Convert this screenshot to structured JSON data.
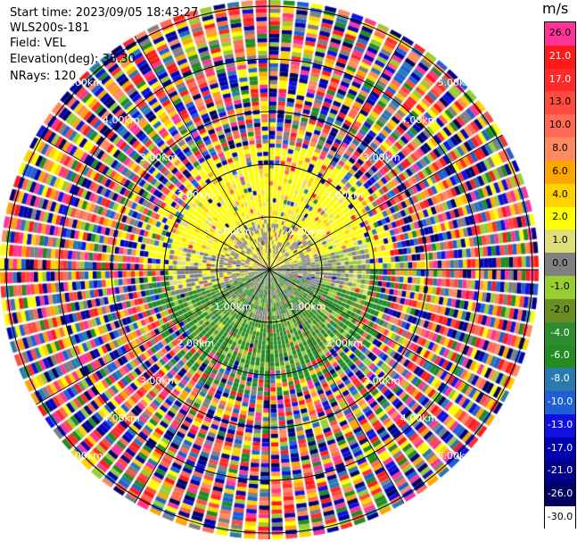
{
  "header": {
    "start_time": "Start time: 2023/09/05 18:43:27",
    "instrument": "WLS200s-181",
    "field": "Field: VEL",
    "elevation": "Elevation(deg): 35.30",
    "nrays": "NRays: 120"
  },
  "colorbar": {
    "unit": "m/s",
    "bands": [
      {
        "label": "26.0",
        "color": "#ff3399"
      },
      {
        "label": "21.0",
        "color": "#ff1a1a"
      },
      {
        "label": "17.0",
        "color": "#ff2a2a"
      },
      {
        "label": "13.0",
        "color": "#ff4a40"
      },
      {
        "label": "10.0",
        "color": "#ff6a55"
      },
      {
        "label": "8.0",
        "color": "#ff8a60"
      },
      {
        "label": "6.0",
        "color": "#ffa500"
      },
      {
        "label": "4.0",
        "color": "#ffd200"
      },
      {
        "label": "2.0",
        "color": "#ffff00"
      },
      {
        "label": "1.0",
        "color": "#dede78"
      },
      {
        "label": "0.0",
        "color": "#808080"
      },
      {
        "label": "-1.0",
        "color": "#9acd32"
      },
      {
        "label": "-2.0",
        "color": "#6b8e23"
      },
      {
        "label": "-4.0",
        "color": "#2e8b2e"
      },
      {
        "label": "-6.0",
        "color": "#228b22"
      },
      {
        "label": "-8.0",
        "color": "#2a7ab0"
      },
      {
        "label": "-10.0",
        "color": "#1e5fd6"
      },
      {
        "label": "-13.0",
        "color": "#1010e0"
      },
      {
        "label": "-17.0",
        "color": "#0000b0"
      },
      {
        "label": "-21.0",
        "color": "#00008b"
      },
      {
        "label": "-26.0",
        "color": "#000060"
      },
      {
        "label": "-30.0",
        "color": "#ffffff"
      }
    ]
  },
  "range_rings": [
    {
      "label": "1.00km"
    },
    {
      "label": "2.00km"
    },
    {
      "label": "3.00km"
    },
    {
      "label": "4.00km"
    },
    {
      "label": "5.00km"
    }
  ]
}
